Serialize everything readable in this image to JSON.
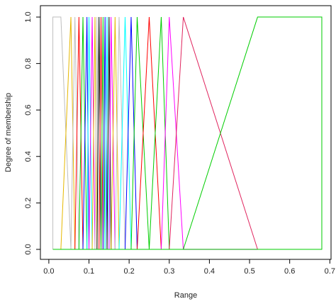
{
  "chart_data": {
    "type": "line",
    "xlabel": "Range",
    "ylabel": "Degree of membership",
    "xlim": [
      -0.021,
      0.703
    ],
    "ylim": [
      -0.043,
      1.049
    ],
    "xticks": [
      {
        "value": 0,
        "label": "0.0"
      },
      {
        "value": 0.1,
        "label": "0.1"
      },
      {
        "value": 0.2,
        "label": "0.2"
      },
      {
        "value": 0.3,
        "label": "0.3"
      },
      {
        "value": 0.4,
        "label": "0.4"
      },
      {
        "value": 0.5,
        "label": "0.5"
      },
      {
        "value": 0.6,
        "label": "0.6"
      },
      {
        "value": 0.7,
        "label": "0.7"
      }
    ],
    "yticks": [
      {
        "value": 0,
        "label": "0.0"
      },
      {
        "value": 0.2,
        "label": "0.2"
      },
      {
        "value": 0.4,
        "label": "0.4"
      },
      {
        "value": 0.6,
        "label": "0.6"
      },
      {
        "value": 0.8,
        "label": "0.8"
      },
      {
        "value": 1,
        "label": "1.0"
      }
    ],
    "series": [
      {
        "color": "#BEBEBE",
        "x": [
          0.01,
          0.01,
          0.03,
          0.055
        ],
        "values": [
          0,
          1,
          1,
          0
        ]
      },
      {
        "color": "#E6B800",
        "x": [
          0.03,
          0.055,
          0.065
        ],
        "values": [
          0,
          1,
          0
        ]
      },
      {
        "color": "#BEBEBE",
        "x": [
          0.055,
          0.065,
          0.075
        ],
        "values": [
          0,
          1,
          0
        ]
      },
      {
        "color": "#FF0000",
        "x": [
          0.065,
          0.075,
          0.085
        ],
        "values": [
          0,
          1,
          0
        ]
      },
      {
        "color": "#00CD00",
        "x": [
          0.075,
          0.085,
          0.095
        ],
        "values": [
          0,
          1,
          0
        ]
      },
      {
        "color": "#0000FF",
        "x": [
          0.085,
          0.095,
          0.1
        ],
        "values": [
          0,
          1,
          0
        ]
      },
      {
        "color": "#00FFFF",
        "x": [
          0.095,
          0.1,
          0.108
        ],
        "values": [
          0,
          1,
          0
        ]
      },
      {
        "color": "#FF00FF",
        "x": [
          0.1,
          0.108,
          0.115
        ],
        "values": [
          0,
          1,
          0
        ]
      },
      {
        "color": "#E6B800",
        "x": [
          0.108,
          0.115,
          0.12
        ],
        "values": [
          0,
          1,
          0
        ]
      },
      {
        "color": "#BEBEBE",
        "x": [
          0.115,
          0.12,
          0.125
        ],
        "values": [
          0,
          1,
          0
        ]
      },
      {
        "color": "#000000",
        "x": [
          0.12,
          0.125,
          0.13
        ],
        "values": [
          0,
          1,
          0
        ]
      },
      {
        "color": "#FF0000",
        "x": [
          0.125,
          0.13,
          0.135
        ],
        "values": [
          0,
          1,
          0
        ]
      },
      {
        "color": "#00CD00",
        "x": [
          0.13,
          0.135,
          0.14
        ],
        "values": [
          0,
          1,
          0
        ]
      },
      {
        "color": "#0000FF",
        "x": [
          0.135,
          0.14,
          0.145
        ],
        "values": [
          0,
          1,
          0
        ]
      },
      {
        "color": "#00FFFF",
        "x": [
          0.14,
          0.145,
          0.15
        ],
        "values": [
          0,
          1,
          0
        ]
      },
      {
        "color": "#000000",
        "x": [
          0.145,
          0.15,
          0.155
        ],
        "values": [
          0,
          1,
          0
        ]
      },
      {
        "color": "#FF00FF",
        "x": [
          0.15,
          0.155,
          0.165
        ],
        "values": [
          0,
          1,
          0
        ]
      },
      {
        "color": "#E6B800",
        "x": [
          0.155,
          0.165,
          0.175
        ],
        "values": [
          0,
          1,
          0
        ]
      },
      {
        "color": "#BEBEBE",
        "x": [
          0.165,
          0.175,
          0.19
        ],
        "values": [
          0,
          1,
          0
        ]
      },
      {
        "color": "#00FFFF",
        "x": [
          0.175,
          0.19,
          0.205
        ],
        "values": [
          0,
          1,
          0
        ]
      },
      {
        "color": "#0000FF",
        "x": [
          0.19,
          0.205,
          0.22
        ],
        "values": [
          0,
          1,
          0
        ]
      },
      {
        "color": "#00CD00",
        "x": [
          0.205,
          0.22,
          0.25
        ],
        "values": [
          0,
          1,
          0
        ]
      },
      {
        "color": "#FF0000",
        "x": [
          0.22,
          0.25,
          0.28
        ],
        "values": [
          0,
          1,
          0
        ]
      },
      {
        "color": "#00CD00",
        "x": [
          0.25,
          0.28,
          0.3
        ],
        "values": [
          0,
          1,
          0
        ]
      },
      {
        "color": "#FF00FF",
        "x": [
          0.28,
          0.3,
          0.335,
          0.52
        ],
        "values": [
          0,
          1,
          0,
          0
        ]
      },
      {
        "color": "#E0245E",
        "x": [
          0.3,
          0.335,
          0.52
        ],
        "values": [
          0,
          1,
          0
        ]
      },
      {
        "color": "#00CD00",
        "x": [
          0.335,
          0.52,
          0.68,
          0.68,
          0.01
        ],
        "values": [
          0,
          1,
          1,
          0,
          0
        ]
      }
    ]
  }
}
